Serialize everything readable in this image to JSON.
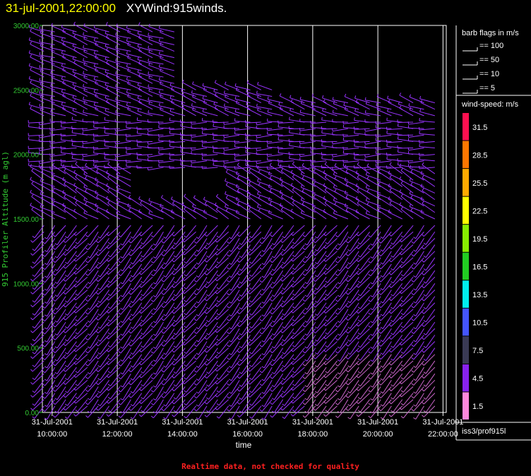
{
  "header": {
    "datetime": "31-jul-2001,22:00:00",
    "product": "XYWind:915winds."
  },
  "colors": {
    "background": "#000000",
    "title_datetime": "#ffff00",
    "y_axis": "#33cc33",
    "barb": "#9933ff",
    "barb_light": "#cc66cc",
    "footer": "#ff2020"
  },
  "chart_data": {
    "type": "scatter",
    "subtype": "wind-barb time-height",
    "xlabel": "time",
    "ylabel": "915 Profiler Altitude (m agl)",
    "ylim": [
      0,
      3000
    ],
    "y_ticks": [
      "0.00",
      "500.00",
      "1000.00",
      "1500.00",
      "2000.00",
      "2500.00",
      "3000.00"
    ],
    "x_ticks": [
      {
        "hour": 10,
        "date": "31-Jul-2001",
        "time": "10:00:00"
      },
      {
        "hour": 12,
        "date": "31-Jul-2001",
        "time": "12:00:00"
      },
      {
        "hour": 14,
        "date": "31-Jul-2001",
        "time": "14:00:00"
      },
      {
        "hour": 16,
        "date": "31-Jul-2001",
        "time": "16:00:00"
      },
      {
        "hour": 18,
        "date": "31-Jul-2001",
        "time": "18:00:00"
      },
      {
        "hour": 20,
        "date": "31-Jul-2001",
        "time": "20:00:00"
      },
      {
        "hour": 22,
        "date": "31-Jul-2001",
        "time": "22:00:00"
      }
    ],
    "xlim_hours": [
      9.7,
      22.1
    ],
    "grid_vertical": true,
    "barb_legend": {
      "title": "barb flags in m/s",
      "entries": [
        {
          "label": "== 100",
          "value": 100
        },
        {
          "label": "== 50",
          "value": 50
        },
        {
          "label": "== 10",
          "value": 10
        },
        {
          "label": "== 5",
          "value": 5
        }
      ]
    },
    "speed_legend": {
      "title": "wind-speed: m/s",
      "bins": [
        {
          "label": "31.5",
          "color": "#ff1050"
        },
        {
          "label": "28.5",
          "color": "#ff7700"
        },
        {
          "label": "25.5",
          "color": "#ffaa00"
        },
        {
          "label": "22.5",
          "color": "#ffff00"
        },
        {
          "label": "19.5",
          "color": "#88ee00"
        },
        {
          "label": "16.5",
          "color": "#22cc22"
        },
        {
          "label": "13.5",
          "color": "#00eeee"
        },
        {
          "label": "10.5",
          "color": "#4455ff"
        },
        {
          "label": "7.5",
          "color": "#3a3a55"
        },
        {
          "label": "4.5",
          "color": "#8822ee"
        },
        {
          "label": "1.5",
          "color": "#ff88dd"
        }
      ]
    },
    "station": "iss3/prof915l",
    "barb_regimes": [
      {
        "alt_min": 2300,
        "alt_max": 3000,
        "dir_deg": 290
      },
      {
        "alt_min": 1900,
        "alt_max": 2300,
        "dir_deg": 270
      },
      {
        "alt_min": 1500,
        "alt_max": 1900,
        "dir_deg": 300
      },
      {
        "alt_min": 0,
        "alt_max": 1500,
        "dir_deg": 220
      }
    ]
  },
  "footer": {
    "note": "Realtime data, not checked for quality"
  }
}
